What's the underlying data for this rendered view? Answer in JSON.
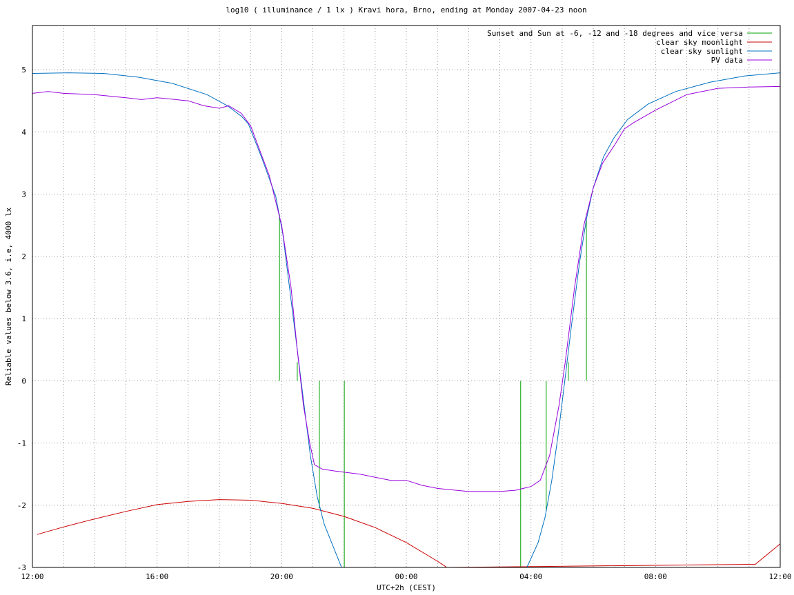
{
  "chart_data": {
    "type": "line",
    "title": "log10 ( illuminance / 1 lx ) Kravi hora, Brno, ending at Monday 2007-04-23 noon",
    "x_label": "UTC+2h (CEST)",
    "y_label": "Reliable values below 3.6, i.e, 4000 lx",
    "xlim": [
      0,
      24
    ],
    "xticks": [
      {
        "value": 0,
        "label": "12:00"
      },
      {
        "value": 4,
        "label": "16:00"
      },
      {
        "value": 8,
        "label": "20:00"
      },
      {
        "value": 12,
        "label": "00:00"
      },
      {
        "value": 16,
        "label": "04:00"
      },
      {
        "value": 20,
        "label": "08:00"
      },
      {
        "value": 24,
        "label": "12:00"
      }
    ],
    "xminorticks": [
      1,
      2,
      3,
      5,
      6,
      7,
      9,
      10,
      11,
      13,
      14,
      15,
      17,
      18,
      19,
      21,
      22,
      23
    ],
    "ylim": [
      -3,
      5.71
    ],
    "yticks": [
      -3,
      -2,
      -1,
      0,
      1,
      2,
      3,
      4,
      5
    ],
    "grid": true,
    "legend": "top-right",
    "series": [
      {
        "name": "Sunset and Sun at -6, -12 and -18 degrees and vice versa",
        "color": "#00a000",
        "style": "impulses",
        "x": [
          7.93,
          8.5,
          9.21,
          10.01,
          15.67,
          16.49,
          17.2,
          17.78
        ],
        "values": [
          2.68,
          0.3,
          -2.05,
          -3,
          -3,
          -2.1,
          0.3,
          2.6
        ]
      },
      {
        "name": "clear sky moonlight",
        "color": "#cc0000",
        "style": "lines",
        "x": [
          0.15,
          1,
          2,
          3,
          4,
          5,
          6,
          7,
          8,
          9,
          10,
          11,
          12,
          13,
          13.3,
          23.2,
          24
        ],
        "values": [
          -2.47,
          -2.35,
          -2.22,
          -2.1,
          -1.99,
          -1.94,
          -1.91,
          -1.92,
          -1.97,
          -2.05,
          -2.18,
          -2.36,
          -2.6,
          -2.9,
          -3.0,
          -2.95,
          -2.62
        ]
      },
      {
        "name": "clear sky sunlight",
        "color": "#0070c0",
        "style": "lines",
        "x": [
          0,
          1.17,
          2.28,
          3.39,
          4.49,
          5.6,
          6.26,
          6.71,
          6.93,
          7.37,
          7.81,
          8.04,
          8.26,
          8.48,
          8.7,
          8.92,
          9.14,
          9.36,
          9.81,
          9.92,
          15.87,
          16.23,
          16.45,
          16.67,
          16.89,
          17.11,
          17.33,
          17.56,
          17.78,
          18.0,
          18.33,
          18.66,
          19.1,
          19.77,
          20.65,
          21.76,
          22.87,
          24
        ],
        "values": [
          4.94,
          4.95,
          4.94,
          4.88,
          4.78,
          4.6,
          4.42,
          4.25,
          4.13,
          3.57,
          2.96,
          2.35,
          1.46,
          0.58,
          -0.31,
          -1.2,
          -1.86,
          -2.3,
          -2.86,
          -3.0,
          -3.0,
          -2.6,
          -2.2,
          -1.6,
          -0.8,
          0.1,
          1.0,
          1.9,
          2.6,
          3.1,
          3.6,
          3.9,
          4.2,
          4.45,
          4.65,
          4.8,
          4.9,
          4.95
        ]
      },
      {
        "name": "PV data",
        "color": "#9900dd",
        "style": "lines",
        "x": [
          0,
          0.5,
          1,
          2,
          3,
          3.5,
          4,
          5,
          5.5,
          6,
          6.3,
          6.7,
          7,
          7.3,
          7.6,
          8,
          8.3,
          8.5,
          8.7,
          8.9,
          9.05,
          9.3,
          9.7,
          10.5,
          11,
          11.5,
          12,
          12.5,
          13,
          14,
          15,
          15.5,
          16,
          16.3,
          16.6,
          16.9,
          17.1,
          17.4,
          17.7,
          18,
          18.3,
          18.7,
          19,
          19.3,
          20,
          21,
          22,
          23,
          24
        ],
        "values": [
          4.62,
          4.65,
          4.62,
          4.6,
          4.55,
          4.52,
          4.55,
          4.5,
          4.42,
          4.38,
          4.42,
          4.3,
          4.1,
          3.7,
          3.3,
          2.5,
          1.5,
          0.5,
          -0.4,
          -1.0,
          -1.35,
          -1.42,
          -1.45,
          -1.5,
          -1.55,
          -1.6,
          -1.6,
          -1.68,
          -1.73,
          -1.78,
          -1.78,
          -1.76,
          -1.7,
          -1.6,
          -1.2,
          -0.4,
          0.3,
          1.5,
          2.5,
          3.1,
          3.5,
          3.8,
          4.05,
          4.15,
          4.35,
          4.6,
          4.7,
          4.72,
          4.73
        ]
      }
    ]
  }
}
